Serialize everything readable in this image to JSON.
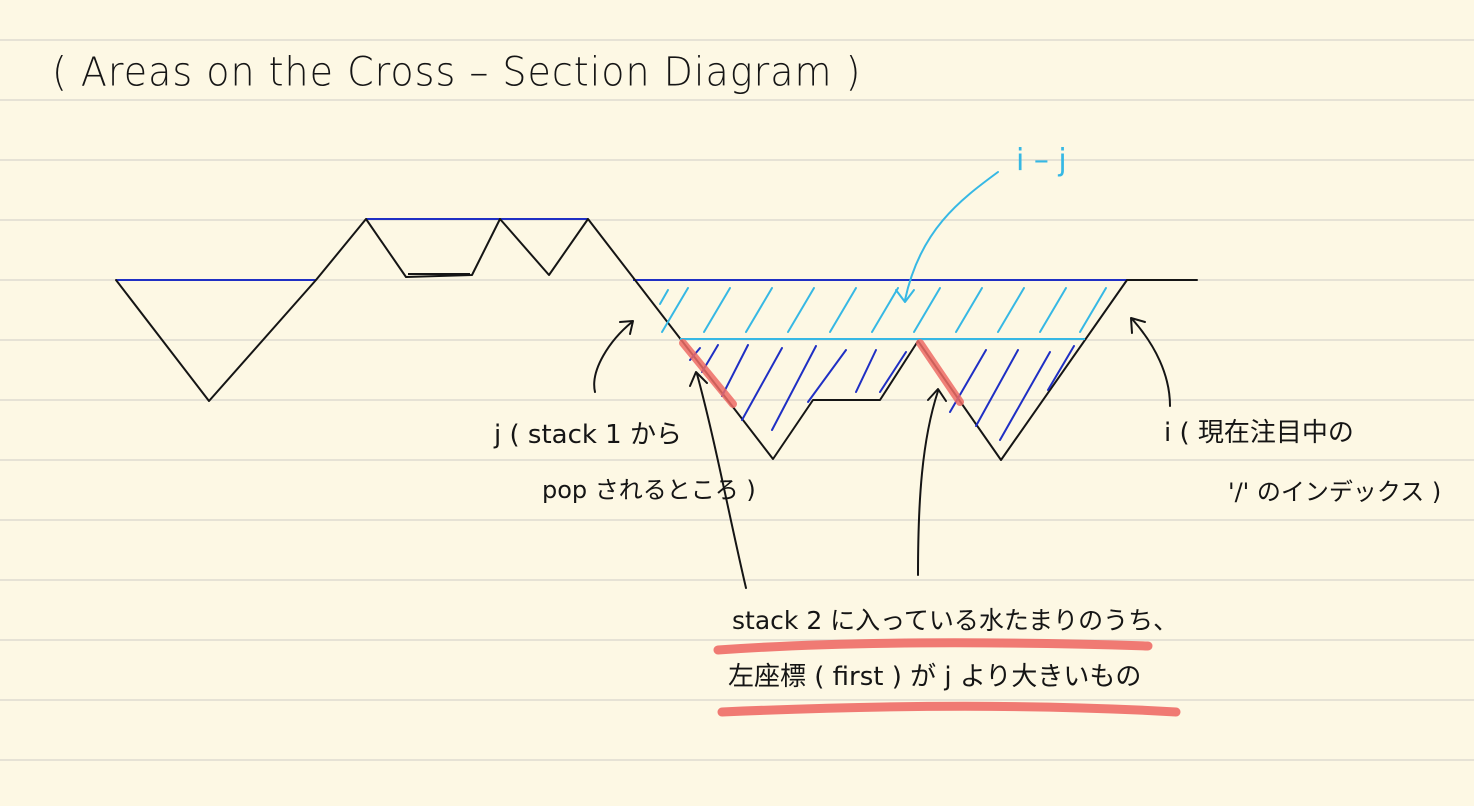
{
  "title": "( Areas   on   the   Cross – Section   Diagram )",
  "labels": {
    "i_minus_j": "i – j",
    "j_line1": "j ( stack 1 から",
    "j_line2": "pop されるところ )",
    "i_line1": "i ( 現在注目中の",
    "i_line2": "'/' のインデックス )",
    "note_line1": "stack 2 に入っている水たまりのうち、",
    "note_line2": "左座標 ( first ) が j より大きいもの"
  },
  "colors": {
    "paper": "#fdf8e4",
    "rule": "#dedad0",
    "ink": "#151515",
    "water_level": "#1f2fc4",
    "hatch_upper": "#36b8e4",
    "hatch_lower": "#1f2fc4",
    "highlight": "#ee6c66"
  }
}
